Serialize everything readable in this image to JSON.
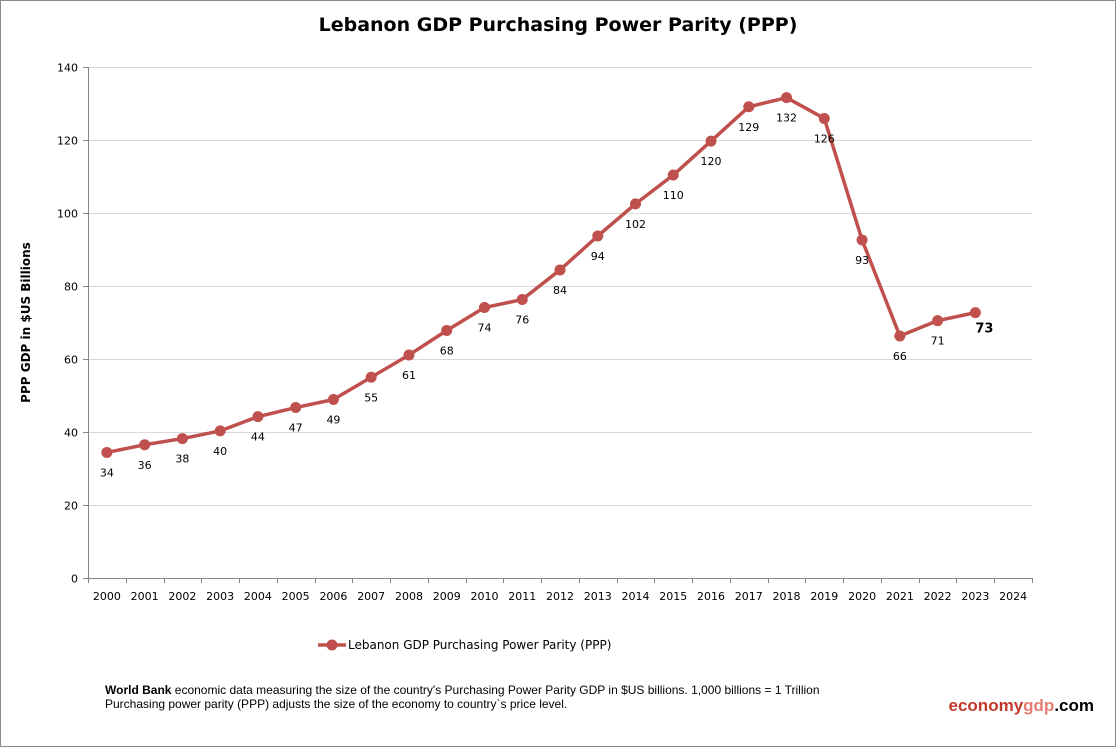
{
  "chart_data": {
    "type": "line",
    "title": "Lebanon GDP Purchasing Power Parity (PPP)",
    "xlabel": "",
    "ylabel": "PPP GDP in $US Billions",
    "categories": [
      "2000",
      "2001",
      "2002",
      "2003",
      "2004",
      "2005",
      "2006",
      "2007",
      "2008",
      "2009",
      "2010",
      "2011",
      "2012",
      "2013",
      "2014",
      "2015",
      "2016",
      "2017",
      "2018",
      "2019",
      "2020",
      "2021",
      "2022",
      "2023",
      "2024"
    ],
    "series": [
      {
        "name": "Lebanon GDP Purchasing Power Parity (PPP)",
        "values": [
          34.4,
          36.5,
          38.2,
          40.3,
          44.2,
          46.7,
          48.9,
          55.0,
          61.1,
          67.8,
          74.1,
          76.3,
          84.4,
          93.7,
          102.5,
          110.4,
          119.7,
          129.1,
          131.6,
          125.9,
          92.6,
          66.3,
          70.5,
          72.7,
          null
        ],
        "labels": [
          "34",
          "36",
          "38",
          "40",
          "44",
          "47",
          "49",
          "55",
          "61",
          "68",
          "74",
          "76",
          "84",
          "94",
          "102",
          "110",
          "120",
          "129",
          "132",
          "126",
          "93",
          "66",
          "71",
          "73",
          ""
        ],
        "color": "#c0504d"
      }
    ],
    "ylim": [
      0,
      140
    ],
    "yticks": [
      "0",
      "20",
      "40",
      "60",
      "80",
      "100",
      "120",
      "140"
    ],
    "grid": true,
    "legend": "bottom"
  },
  "footer": {
    "bold": "World Bank",
    "line1": " economic data  measuring the size of the country's Purchasing Power Parity GDP in $US billions. 1,000 billions = 1 Trillion",
    "line2": "Purchasing power parity (PPP) adjusts the size of the economy to country`s price level."
  },
  "brand": {
    "part1": "economy",
    "part2": "gdp",
    "part3": ".com",
    "color1": "#c0392b",
    "color2": "#e67e73"
  }
}
